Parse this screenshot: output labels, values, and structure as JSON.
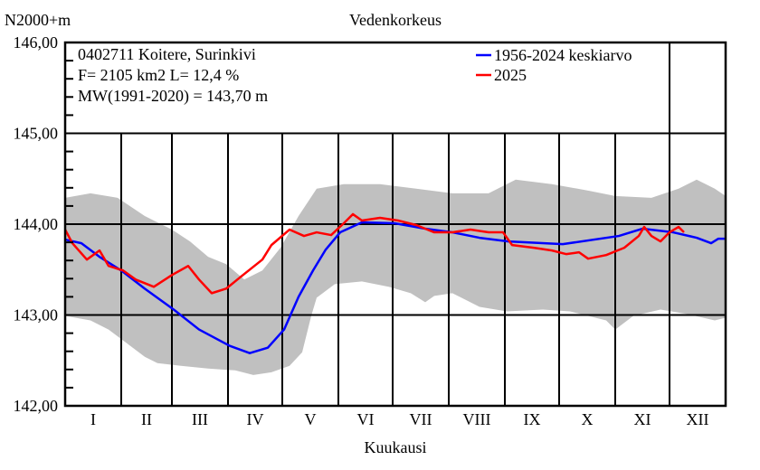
{
  "chart_data": {
    "type": "line",
    "title": "Vedenkorkeus",
    "ylabel": "N2000+m",
    "xlabel": "Kuukausi",
    "ylim": [
      142,
      146
    ],
    "xlim": [
      0,
      365
    ],
    "x_unit": "day of year",
    "yticks": [
      "142,00",
      "143,00",
      "144,00",
      "145,00",
      "146,00"
    ],
    "ytick_values": [
      142,
      143,
      144,
      145,
      146
    ],
    "months": [
      "I",
      "II",
      "III",
      "IV",
      "V",
      "VI",
      "VII",
      "VIII",
      "IX",
      "X",
      "XI",
      "XII"
    ],
    "month_starts": [
      0,
      31,
      59,
      90,
      120,
      151,
      181,
      212,
      243,
      273,
      304,
      334,
      365
    ],
    "grid": true,
    "info": {
      "station": "0402711 Koitere, Surinkivi",
      "area": "F=   2105 km2 L=  12,4 %",
      "mw": "MW(1991-2020) = 143,70 m"
    },
    "legend": {
      "placement": "top-right"
    },
    "colors": {
      "mean": "#0000ff",
      "current": "#ff0000",
      "band": "#c0c0c0"
    },
    "band": {
      "upper": [
        [
          0,
          144.29
        ],
        [
          14,
          144.34
        ],
        [
          29,
          144.29
        ],
        [
          44,
          144.09
        ],
        [
          59,
          143.94
        ],
        [
          69,
          143.81
        ],
        [
          79,
          143.64
        ],
        [
          89,
          143.56
        ],
        [
          99,
          143.39
        ],
        [
          109,
          143.49
        ],
        [
          119,
          143.74
        ],
        [
          129,
          144.09
        ],
        [
          139,
          144.39
        ],
        [
          154,
          144.44
        ],
        [
          174,
          144.44
        ],
        [
          194,
          144.39
        ],
        [
          214,
          144.34
        ],
        [
          234,
          144.34
        ],
        [
          249,
          144.49
        ],
        [
          269,
          144.44
        ],
        [
          289,
          144.37
        ],
        [
          304,
          144.31
        ],
        [
          324,
          144.29
        ],
        [
          339,
          144.39
        ],
        [
          349,
          144.49
        ],
        [
          359,
          144.39
        ],
        [
          365,
          144.31
        ]
      ],
      "lower": [
        [
          0,
          142.99
        ],
        [
          14,
          142.94
        ],
        [
          24,
          142.84
        ],
        [
          34,
          142.69
        ],
        [
          44,
          142.54
        ],
        [
          51,
          142.47
        ],
        [
          64,
          142.44
        ],
        [
          79,
          142.41
        ],
        [
          94,
          142.39
        ],
        [
          104,
          142.34
        ],
        [
          114,
          142.37
        ],
        [
          124,
          142.44
        ],
        [
          131,
          142.59
        ],
        [
          136,
          142.99
        ],
        [
          139,
          143.19
        ],
        [
          149,
          143.34
        ],
        [
          164,
          143.37
        ],
        [
          179,
          143.31
        ],
        [
          191,
          143.24
        ],
        [
          199,
          143.14
        ],
        [
          204,
          143.21
        ],
        [
          214,
          143.24
        ],
        [
          229,
          143.09
        ],
        [
          244,
          143.04
        ],
        [
          264,
          143.06
        ],
        [
          279,
          143.04
        ],
        [
          289,
          142.99
        ],
        [
          299,
          142.94
        ],
        [
          304,
          142.84
        ],
        [
          314,
          142.99
        ],
        [
          329,
          143.06
        ],
        [
          344,
          143.01
        ],
        [
          359,
          142.94
        ],
        [
          365,
          142.97
        ]
      ]
    },
    "series": [
      {
        "name": "1956-2024 keskiarvo",
        "color": "#0000ff",
        "points": [
          [
            0,
            143.83
          ],
          [
            9,
            143.79
          ],
          [
            19,
            143.64
          ],
          [
            31,
            143.49
          ],
          [
            44,
            143.29
          ],
          [
            60,
            143.06
          ],
          [
            74,
            142.84
          ],
          [
            91,
            142.66
          ],
          [
            102,
            142.58
          ],
          [
            112,
            142.64
          ],
          [
            121,
            142.84
          ],
          [
            129,
            143.2
          ],
          [
            137,
            143.49
          ],
          [
            144,
            143.72
          ],
          [
            152,
            143.91
          ],
          [
            164,
            144.02
          ],
          [
            182,
            144.01
          ],
          [
            199,
            143.95
          ],
          [
            214,
            143.91
          ],
          [
            229,
            143.85
          ],
          [
            245,
            143.81
          ],
          [
            275,
            143.78
          ],
          [
            306,
            143.87
          ],
          [
            319,
            143.95
          ],
          [
            336,
            143.91
          ],
          [
            349,
            143.85
          ],
          [
            357,
            143.79
          ],
          [
            361,
            143.84
          ],
          [
            365,
            143.84
          ]
        ]
      },
      {
        "name": "2025",
        "color": "#ff0000",
        "points": [
          [
            0,
            143.94
          ],
          [
            4,
            143.79
          ],
          [
            12,
            143.61
          ],
          [
            19,
            143.71
          ],
          [
            24,
            143.54
          ],
          [
            32,
            143.49
          ],
          [
            39,
            143.39
          ],
          [
            49,
            143.31
          ],
          [
            59,
            143.44
          ],
          [
            68,
            143.54
          ],
          [
            74,
            143.39
          ],
          [
            81,
            143.24
          ],
          [
            89,
            143.29
          ],
          [
            97,
            143.42
          ],
          [
            109,
            143.61
          ],
          [
            114,
            143.77
          ],
          [
            124,
            143.94
          ],
          [
            132,
            143.87
          ],
          [
            139,
            143.91
          ],
          [
            147,
            143.88
          ],
          [
            154,
            144.01
          ],
          [
            159,
            144.11
          ],
          [
            164,
            144.04
          ],
          [
            174,
            144.07
          ],
          [
            184,
            144.04
          ],
          [
            194,
            143.99
          ],
          [
            204,
            143.91
          ],
          [
            214,
            143.91
          ],
          [
            224,
            143.94
          ],
          [
            234,
            143.91
          ],
          [
            242,
            143.91
          ],
          [
            247,
            143.77
          ],
          [
            259,
            143.74
          ],
          [
            269,
            143.71
          ],
          [
            277,
            143.67
          ],
          [
            284,
            143.69
          ],
          [
            289,
            143.62
          ],
          [
            299,
            143.66
          ],
          [
            309,
            143.74
          ],
          [
            317,
            143.87
          ],
          [
            320,
            143.97
          ],
          [
            324,
            143.87
          ],
          [
            329,
            143.81
          ],
          [
            334,
            143.91
          ],
          [
            339,
            143.97
          ],
          [
            342,
            143.91
          ]
        ]
      }
    ]
  }
}
